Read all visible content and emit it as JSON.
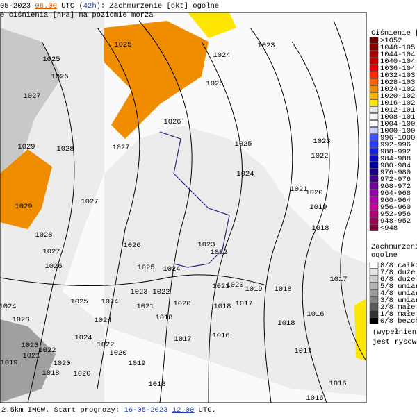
{
  "header": {
    "line1": [
      "05-2023 ",
      "06.00",
      " UTC (",
      "42h",
      "): Zachmurzenie [okt] ogolne"
    ],
    "line2": "e ciśnienia [hPa] na poziomie morza"
  },
  "footer": [
    "2.5km IMGW. Start prognozy: ",
    "16-05-2023",
    " ",
    "12.00",
    " UTC."
  ],
  "pressure_legend": {
    "title": "Ciśnienie [hP",
    "entries": [
      {
        "label": ">1052",
        "color": "#6e0000"
      },
      {
        "label": "1048-105",
        "color": "#8c0000"
      },
      {
        "label": "1044-104",
        "color": "#aa0000"
      },
      {
        "label": "1040-104",
        "color": "#c80000"
      },
      {
        "label": "1036-104",
        "color": "#e60000"
      },
      {
        "label": "1032-103",
        "color": "#ff2a00"
      },
      {
        "label": "1028-103",
        "color": "#ff6400"
      },
      {
        "label": "1024-102",
        "color": "#f08c00"
      },
      {
        "label": "1020-102",
        "color": "#ffb400"
      },
      {
        "label": "1016-102",
        "color": "#ffe600"
      },
      {
        "label": "1012-101",
        "color": "#e6e6e6"
      },
      {
        "label": "1008-101",
        "color": "#f5f5f5"
      },
      {
        "label": "1004-100",
        "color": "#ffffff"
      },
      {
        "label": "1000-100",
        "color": "#c8d2ff"
      },
      {
        "label": "996-1000",
        "color": "#3c50ff"
      },
      {
        "label": "992-996",
        "color": "#2838ff"
      },
      {
        "label": "988-992",
        "color": "#1420e6"
      },
      {
        "label": "984-988",
        "color": "#0a0ac8"
      },
      {
        "label": "980-984",
        "color": "#0000a0"
      },
      {
        "label": "976-980",
        "color": "#1e0082"
      },
      {
        "label": "972-976",
        "color": "#46008c"
      },
      {
        "label": "968-972",
        "color": "#6e00a0"
      },
      {
        "label": "964-968",
        "color": "#9600aa"
      },
      {
        "label": "960-964",
        "color": "#b400b4"
      },
      {
        "label": "956-960",
        "color": "#c8009b"
      },
      {
        "label": "952-956",
        "color": "#b40078"
      },
      {
        "label": "948-952",
        "color": "#a0005a"
      },
      {
        "label": "<948",
        "color": "#82003c"
      }
    ]
  },
  "cloud_legend": {
    "title": [
      "Zachmurzenie",
      "ogolne"
    ],
    "entries": [
      {
        "label": "8/8 całkow",
        "color": "#ffffff"
      },
      {
        "label": "7/8 duże",
        "color": "#e6e6e6"
      },
      {
        "label": "6/8 duże",
        "color": "#cdcdcd"
      },
      {
        "label": "5/8 umiar",
        "color": "#b4b4b4"
      },
      {
        "label": "4/8 umiar",
        "color": "#9b9b9b"
      },
      {
        "label": "3/8 umiar",
        "color": "#828282"
      },
      {
        "label": "2/8 małe",
        "color": "#5a5a5a"
      },
      {
        "label": "1/8 małe",
        "color": "#323232"
      },
      {
        "label": "0/8 bezch",
        "color": "#000000"
      }
    ],
    "note": [
      "(wypełnieni",
      "jest rysowe"
    ]
  },
  "isobar_labels": [
    1025,
    1024,
    1023,
    1025,
    1026,
    1025,
    1027,
    1026,
    1025,
    1023,
    1022,
    1024,
    1021,
    1020,
    1029,
    1028,
    1027,
    1029,
    1027,
    1019,
    1018,
    1028,
    1026,
    1023,
    1022,
    1027,
    1026,
    1025,
    1024,
    1017,
    1019,
    1018,
    1021,
    1020,
    1023,
    1022,
    1025,
    1024,
    1021,
    1020,
    1018,
    1017,
    1024,
    1023,
    1024,
    1018,
    1016,
    1018,
    1017,
    1016,
    1024,
    1023,
    1022,
    1021,
    1022,
    1020,
    1019,
    1019,
    1020,
    1017,
    1018,
    1020,
    1018,
    1016,
    1016
  ]
}
